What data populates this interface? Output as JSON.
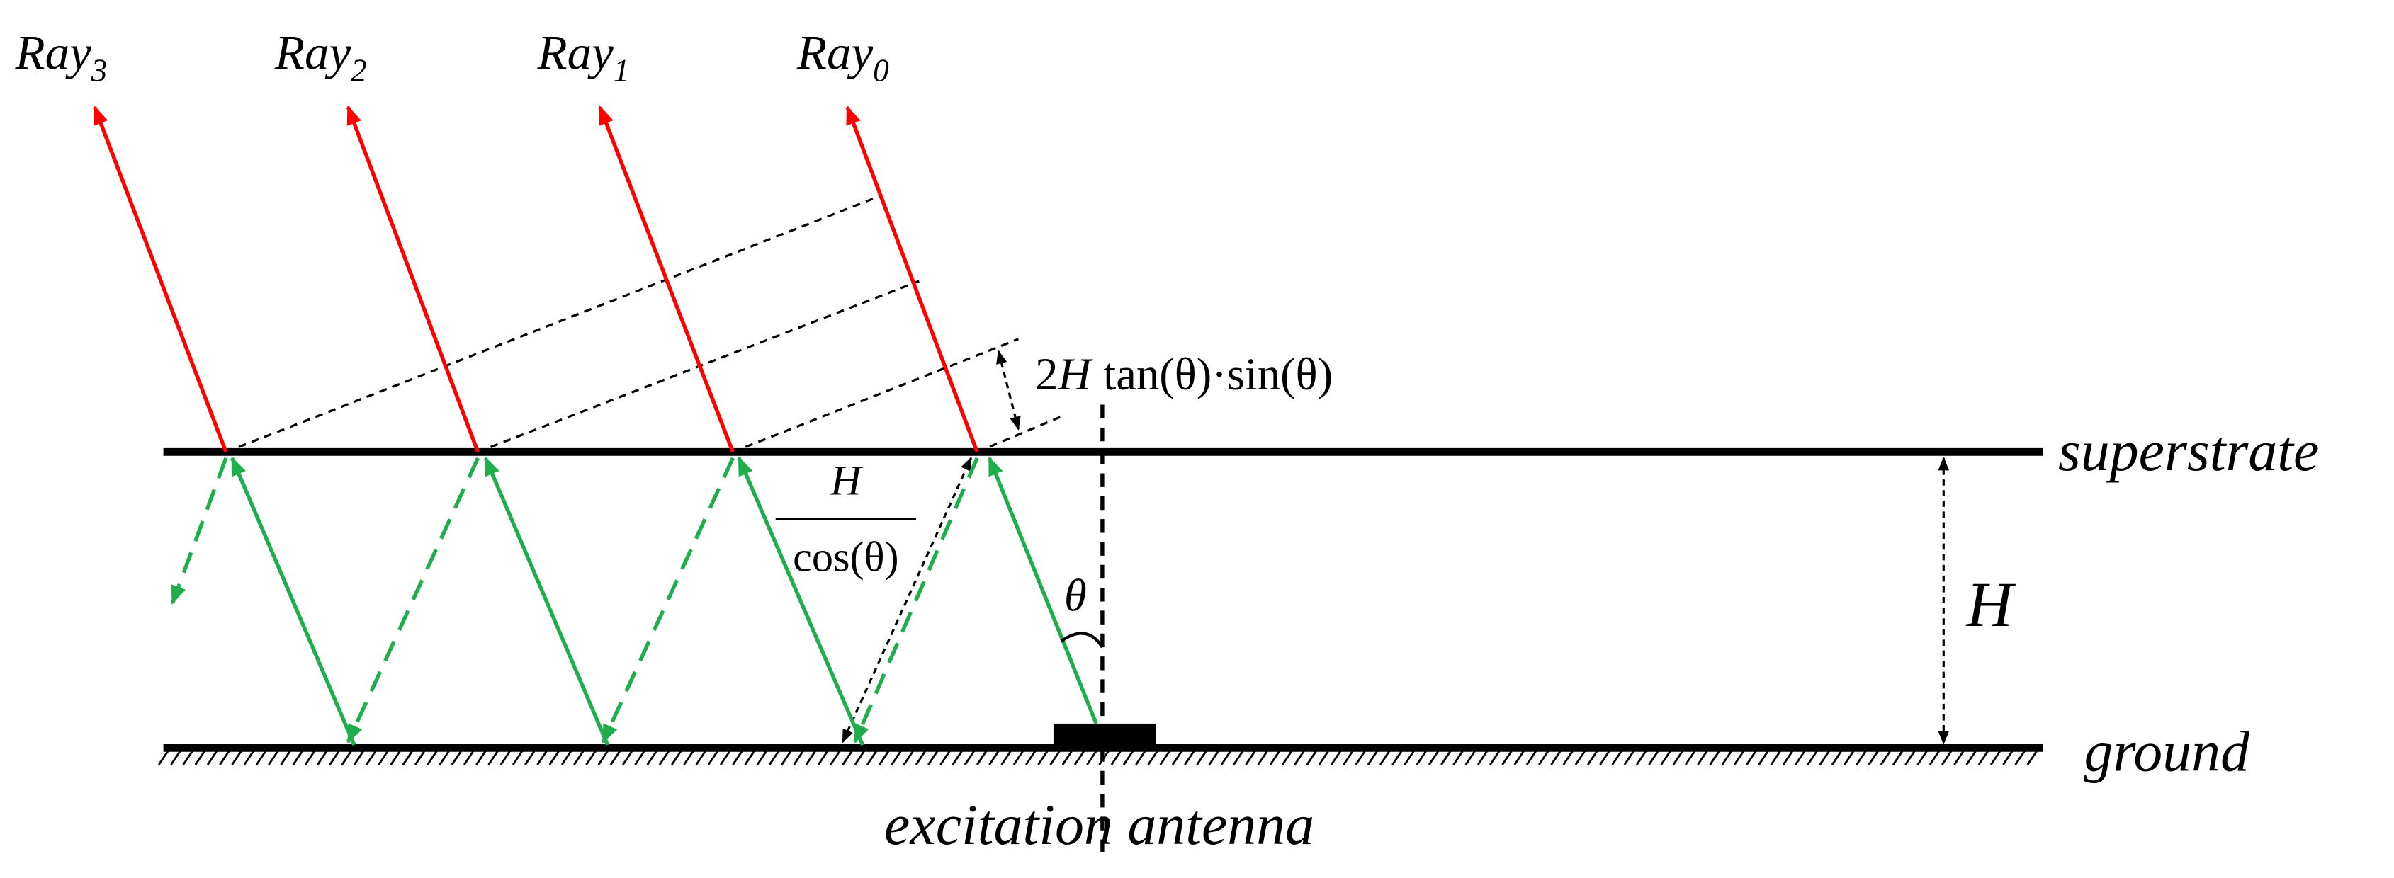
{
  "rays": [
    {
      "name": "Ray",
      "index": "3"
    },
    {
      "name": "Ray",
      "index": "2"
    },
    {
      "name": "Ray",
      "index": "1"
    },
    {
      "name": "Ray",
      "index": "0"
    }
  ],
  "dimensions": {
    "offset": {
      "factor": "2",
      "symbol": "H",
      "expression": "tan(θ)·sin(θ)"
    },
    "path": {
      "numerator": "H",
      "denominator": "cos(θ)"
    },
    "angle": "θ",
    "height": "H"
  },
  "layers": {
    "top": "superstrate",
    "bottom": "ground"
  },
  "source": "excitation antenna"
}
